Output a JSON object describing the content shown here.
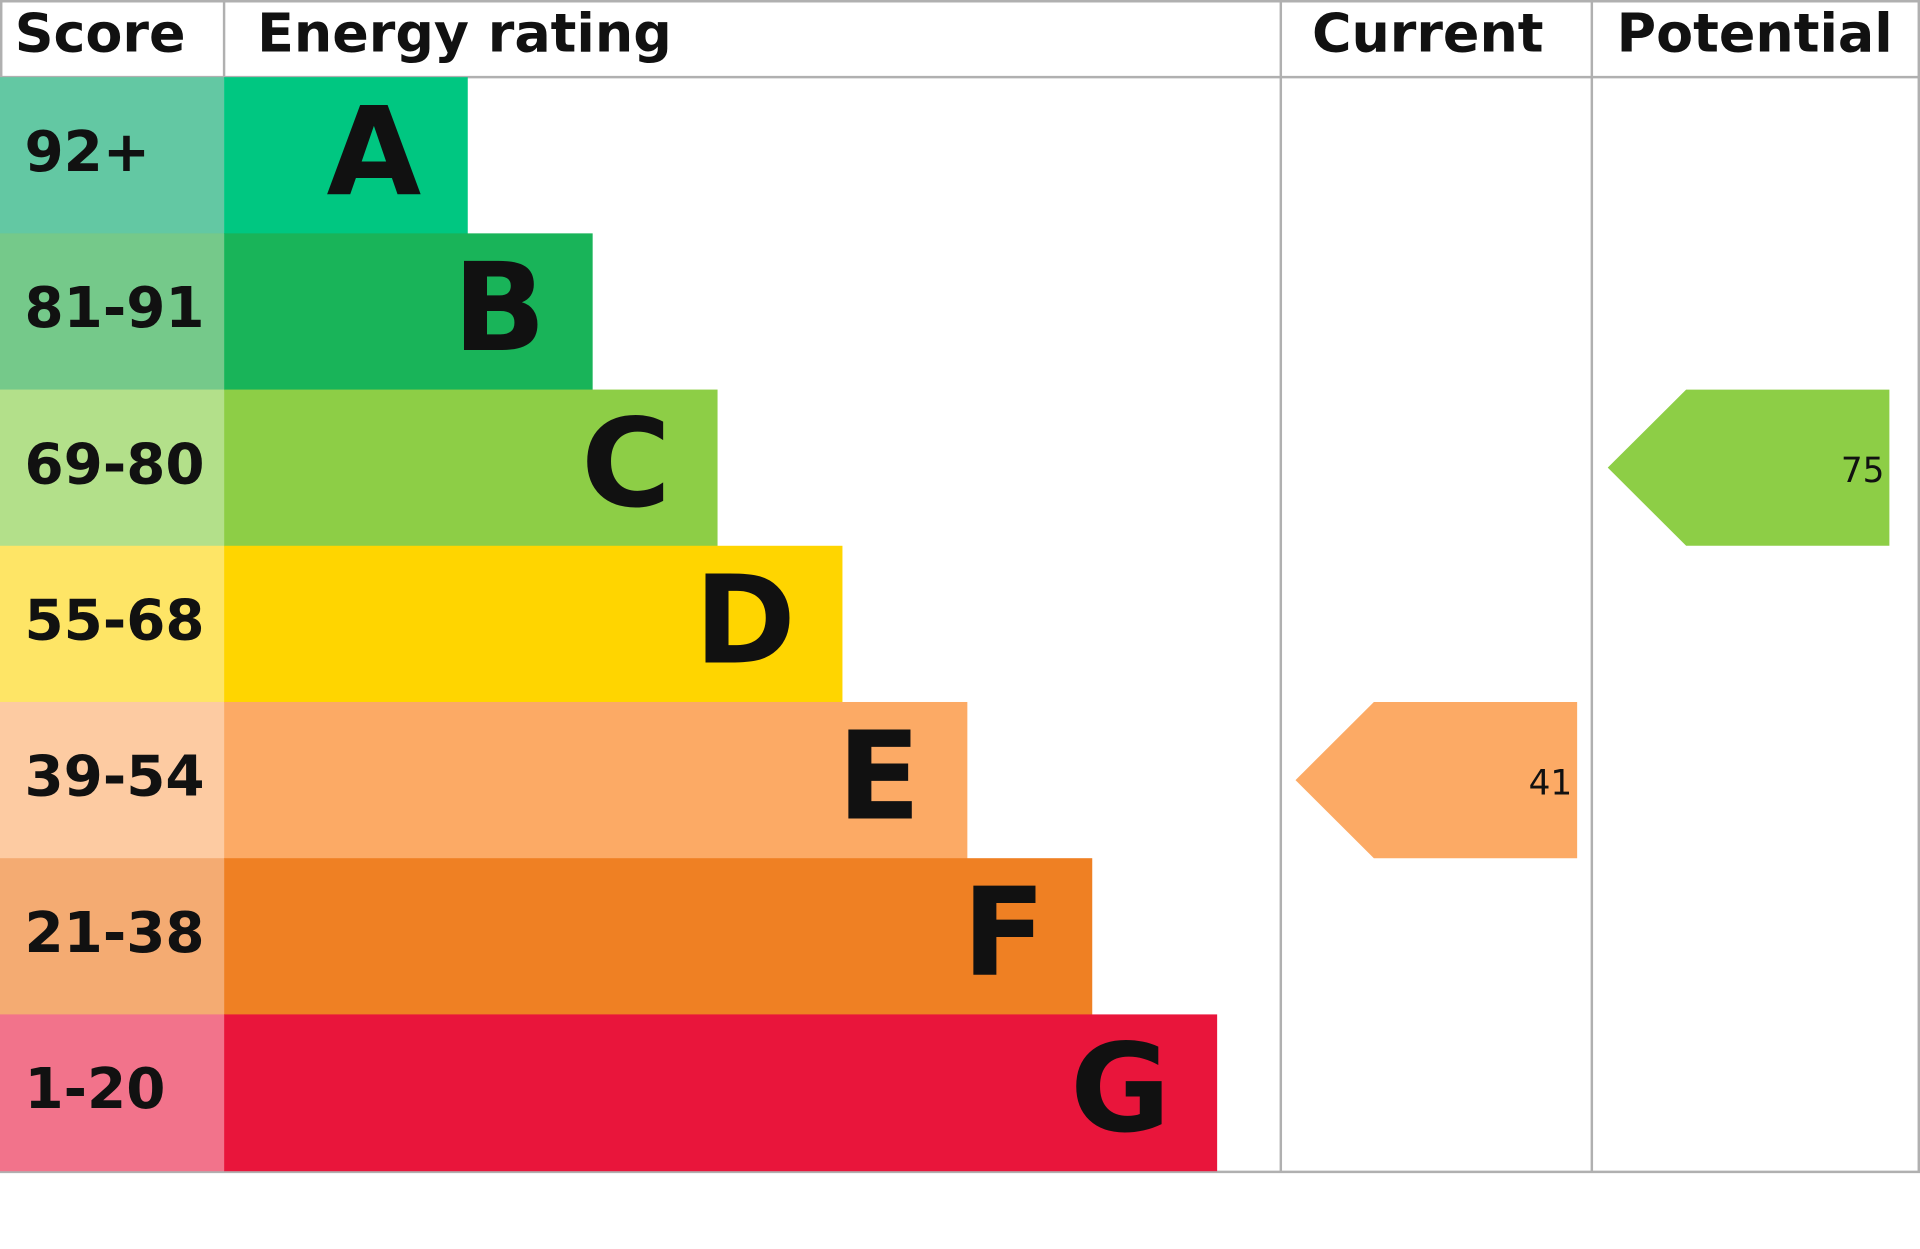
{
  "chart_data": {
    "type": "epc",
    "headers": [
      "Score",
      "Energy rating",
      "Current",
      "Potential"
    ],
    "bands": [
      {
        "score": "92+",
        "letter": "A",
        "color": "#00c781",
        "score_color": "#63c8a3"
      },
      {
        "score": "81-91",
        "letter": "B",
        "color": "#19b459",
        "score_color": "#75c98a"
      },
      {
        "score": "69-80",
        "letter": "C",
        "color": "#8dce46",
        "score_color": "#b3e08a"
      },
      {
        "score": "55-68",
        "letter": "D",
        "color": "#ffd500",
        "score_color": "#fee566"
      },
      {
        "score": "39-54",
        "letter": "E",
        "color": "#fcaa65",
        "score_color": "#fdcba2"
      },
      {
        "score": "21-38",
        "letter": "F",
        "color": "#ef8023",
        "score_color": "#f4ab72"
      },
      {
        "score": "1-20",
        "letter": "G",
        "color": "#e9153b",
        "score_color": "#f2738b"
      }
    ],
    "current": 41,
    "potential": 75
  }
}
